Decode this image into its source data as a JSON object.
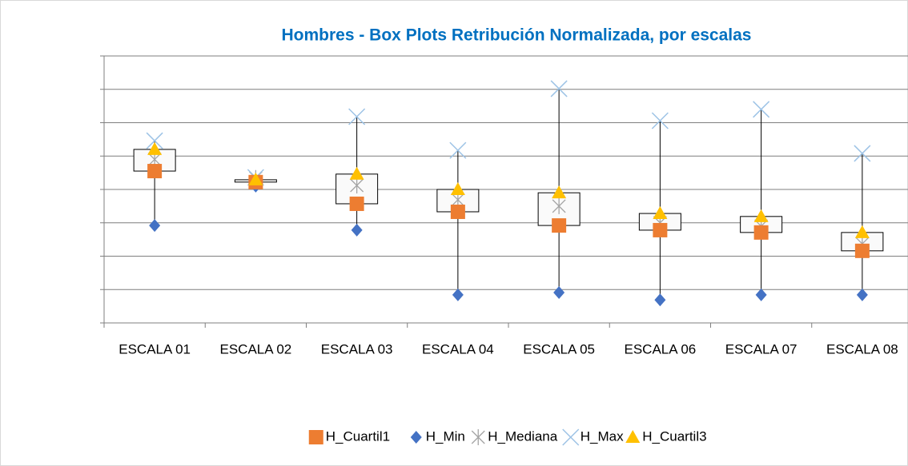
{
  "chart_data": {
    "type": "box",
    "title": "Hombres - Box Plots Retribución Normalizada, por escalas",
    "categories": [
      "ESCALA 01",
      "ESCALA 02",
      "ESCALA 03",
      "ESCALA 04",
      "ESCALA 05",
      "ESCALA 06",
      "ESCALA 07",
      "ESCALA 08"
    ],
    "series": [
      {
        "name": "H_Cuartil1",
        "color": "#ed7d31",
        "values": [
          4.55,
          4.22,
          3.57,
          3.33,
          2.92,
          2.78,
          2.71,
          2.16
        ]
      },
      {
        "name": "H_Min",
        "color": "#4472c4",
        "values": [
          2.92,
          4.1,
          2.78,
          0.84,
          0.91,
          0.69,
          0.84,
          0.84
        ]
      },
      {
        "name": "H_Mediana",
        "color": "#a5a5a5",
        "values": [
          4.9,
          4.34,
          4.12,
          3.69,
          3.5,
          3.0,
          2.9,
          2.37
        ]
      },
      {
        "name": "H_Max",
        "color": "#9dc3e6",
        "values": [
          5.46,
          4.36,
          6.18,
          5.17,
          7.02,
          6.06,
          6.4,
          5.08
        ]
      },
      {
        "name": "H_Cuartil3",
        "color": "#ffc000",
        "values": [
          5.2,
          4.29,
          4.46,
          4.0,
          3.9,
          3.28,
          3.19,
          2.71
        ]
      }
    ],
    "ylim": [
      0,
      8
    ],
    "yticks": [
      0,
      1,
      2,
      3,
      4,
      5,
      6,
      7,
      8
    ],
    "grid": true
  }
}
